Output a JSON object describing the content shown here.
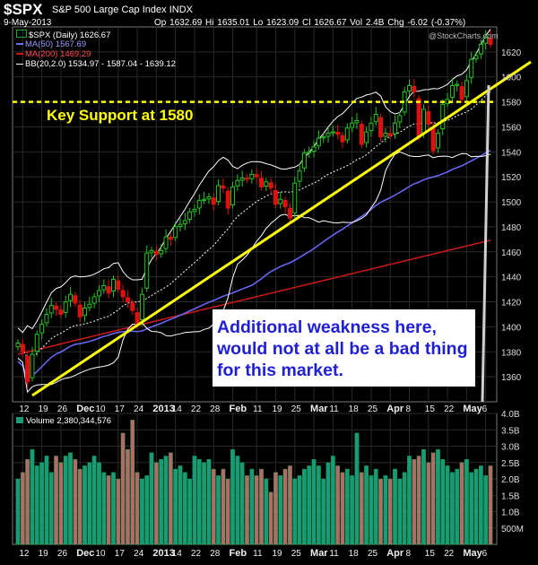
{
  "header": {
    "symbol": "$SPX",
    "name": "S&P 500 Large Cap Index",
    "exchange": "INDX",
    "date": "9-May-2013",
    "ohlc": "Op 1632.69  Hi 1635.01  Lo 1623.09  Cl 1626.67  Vol 2.4B  Chg -6.02 (-0.37%)",
    "watermark": "@StockCharts.com"
  },
  "legend": {
    "price": "$SPX (Daily) 1626.67",
    "ma50": "MA(50) 1567.69",
    "ma200": "MA(200) 1469.29",
    "bb": "BB(20,2.0) 1534.97 - 1587.04 - 1639.12"
  },
  "annotations": {
    "support": "Key Support at 1580",
    "note": "Additional weakness here, would not at all be a bad thing for this market."
  },
  "volume_legend": "Volume 2,380,344,576",
  "colors": {
    "up": "#22c522",
    "down": "#e01010",
    "support": "#ffff00",
    "trend": "#ffff00",
    "ma50": "#6a6aff",
    "ma200": "#d01818",
    "band": "#ffffff",
    "vol_up": "#1a9a7a",
    "vol_down": "#b26a6a"
  },
  "chart_data": [
    {
      "type": "line",
      "subtype": "candlestick",
      "title": "$SPX (Daily)",
      "ylim": [
        1340,
        1640
      ],
      "yticks": [
        1360,
        1380,
        1400,
        1420,
        1440,
        1460,
        1480,
        1500,
        1520,
        1540,
        1560,
        1580,
        1600,
        1620
      ],
      "x_labels": [
        "12",
        "19",
        "26",
        "Dec",
        "10",
        "17",
        "24",
        "2013",
        "14",
        "22",
        "28",
        "Feb",
        "11",
        "19",
        "25",
        "Mar",
        "11",
        "18",
        "25",
        "Apr",
        "8",
        "15",
        "22",
        "May",
        "6"
      ],
      "support_level": 1580,
      "ma50_end": 1567.69,
      "ma200_end": 1469.29,
      "bb_end": [
        1534.97,
        1587.04,
        1639.12
      ],
      "close_last": 1626.67,
      "closes": [
        1387,
        1380,
        1356,
        1378,
        1394,
        1402,
        1410,
        1417,
        1414,
        1410,
        1420,
        1426,
        1419,
        1408,
        1415,
        1418,
        1424,
        1429,
        1433,
        1427,
        1438,
        1430,
        1424,
        1420,
        1413,
        1402,
        1426,
        1459,
        1461,
        1458,
        1461,
        1472,
        1470,
        1480,
        1482,
        1485,
        1492,
        1494,
        1501,
        1502,
        1504,
        1498,
        1513,
        1511,
        1495,
        1512,
        1517,
        1519,
        1518,
        1522,
        1520,
        1512,
        1516,
        1511,
        1498,
        1502,
        1496,
        1487,
        1515,
        1525,
        1539,
        1540,
        1544,
        1551,
        1552,
        1555,
        1556,
        1554,
        1548,
        1559,
        1563,
        1565,
        1546,
        1556,
        1563,
        1570,
        1552,
        1555,
        1553,
        1563,
        1569,
        1588,
        1593,
        1588,
        1552,
        1574,
        1562,
        1541,
        1555,
        1578,
        1582,
        1593,
        1594,
        1582,
        1597,
        1614,
        1617,
        1626,
        1632,
        1626
      ]
    },
    {
      "type": "bar",
      "title": "Volume",
      "ylim": [
        0,
        4.0
      ],
      "yticks": [
        "500M",
        "1.0B",
        "1.5B",
        "2.0B",
        "2.5B",
        "3.0B",
        "3.5B",
        "4.0B"
      ],
      "last_value": 2380344576,
      "values_billions": [
        2.0,
        2.2,
        2.6,
        2.9,
        2.4,
        2.5,
        2.7,
        2.2,
        2.7,
        2.5,
        2.7,
        2.8,
        2.6,
        2.3,
        2.4,
        2.5,
        2.7,
        2.5,
        2.2,
        2.1,
        2.2,
        2.0,
        3.4,
        2.9,
        3.8,
        2.2,
        2.0,
        2.1,
        2.8,
        2.5,
        2.6,
        2.7,
        2.8,
        2.3,
        2.4,
        2.2,
        2.0,
        2.7,
        2.6,
        2.5,
        2.6,
        2.3,
        2.1,
        2.3,
        2.0,
        2.9,
        2.7,
        2.5,
        2.1,
        2.3,
        2.1,
        2.3,
        2.0,
        1.6,
        2.2,
        2.1,
        2.3,
        2.4,
        2.0,
        2.1,
        2.3,
        2.4,
        2.6,
        2.4,
        2.0,
        2.5,
        2.7,
        2.4,
        2.2,
        2.3,
        2.1,
        3.4,
        2.2,
        2.4,
        2.1,
        2.3,
        2.0,
        2.1,
        2.0,
        2.3,
        2.0,
        2.2,
        2.7,
        2.6,
        2.7,
        2.9,
        2.5,
        2.8,
        2.9,
        2.6,
        2.4,
        2.2,
        2.3,
        2.5,
        2.6,
        2.2,
        2.3,
        2.4,
        2.1,
        2.4
      ]
    }
  ]
}
